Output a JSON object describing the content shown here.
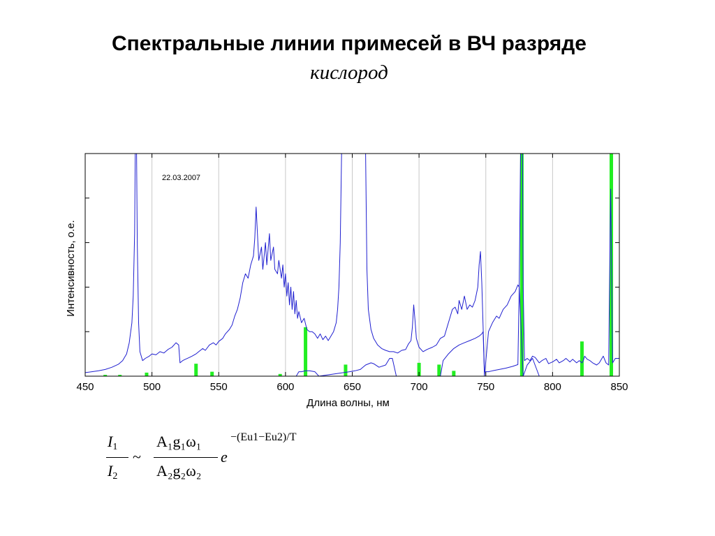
{
  "slide": {
    "title": "Спектральные линии примесей в ВЧ разряде",
    "subtitle": "кислород"
  },
  "chart_data": {
    "type": "line",
    "date_annotation": "22.03.2007",
    "xlabel": "Длина волны, нм",
    "ylabel": "Интенсивность, о.е.",
    "xlim": [
      450,
      850
    ],
    "x_ticks": [
      "450",
      "500",
      "550",
      "600",
      "650",
      "700",
      "750",
      "800",
      "850"
    ],
    "grid_x": [
      500,
      550,
      600,
      650,
      700,
      750,
      800
    ],
    "y_ticks_unlabeled": 5,
    "ylim": [
      0,
      5
    ],
    "colors": {
      "spectrum": "#1f1fd0",
      "lines": "#22ee22",
      "grid": "#c8c8c8",
      "axis": "#000000"
    },
    "series": [
      {
        "style": "line",
        "points": [
          [
            450,
            0.08
          ],
          [
            455,
            0.1
          ],
          [
            460,
            0.12
          ],
          [
            465,
            0.15
          ],
          [
            470,
            0.2
          ],
          [
            475,
            0.27
          ],
          [
            478,
            0.35
          ],
          [
            481,
            0.5
          ],
          [
            483,
            0.75
          ],
          [
            485,
            1.2
          ],
          [
            486,
            1.8
          ],
          [
            487,
            3.2
          ],
          [
            487.5,
            5.0
          ],
          [
            488.5,
            5.0
          ],
          [
            489,
            3.0
          ],
          [
            490,
            1.2
          ],
          [
            491,
            0.55
          ],
          [
            493,
            0.35
          ],
          [
            495,
            0.4
          ],
          [
            498,
            0.45
          ],
          [
            500,
            0.5
          ],
          [
            503,
            0.48
          ],
          [
            506,
            0.55
          ],
          [
            509,
            0.52
          ],
          [
            512,
            0.6
          ],
          [
            515,
            0.65
          ],
          [
            518,
            0.75
          ],
          [
            520,
            0.7
          ],
          [
            521,
            0.3
          ],
          [
            523,
            0.35
          ],
          [
            525,
            0.38
          ],
          [
            528,
            0.42
          ],
          [
            530,
            0.45
          ],
          [
            533,
            0.5
          ],
          [
            535,
            0.55
          ],
          [
            538,
            0.62
          ],
          [
            540,
            0.58
          ],
          [
            543,
            0.7
          ],
          [
            546,
            0.75
          ],
          [
            548,
            0.7
          ],
          [
            550,
            0.78
          ],
          [
            553,
            0.85
          ],
          [
            555,
            0.95
          ],
          [
            558,
            1.05
          ],
          [
            560,
            1.15
          ],
          [
            562,
            1.35
          ],
          [
            564,
            1.5
          ],
          [
            566,
            1.75
          ],
          [
            568,
            2.1
          ],
          [
            570,
            2.3
          ],
          [
            572,
            2.2
          ],
          [
            574,
            2.5
          ],
          [
            576,
            2.7
          ],
          [
            577,
            3.1
          ],
          [
            578,
            3.8
          ],
          [
            579,
            3.2
          ],
          [
            580,
            2.6
          ],
          [
            582,
            2.9
          ],
          [
            583,
            2.4
          ],
          [
            585,
            3.0
          ],
          [
            586,
            2.5
          ],
          [
            588,
            3.2
          ],
          [
            589,
            2.6
          ],
          [
            591,
            2.9
          ],
          [
            592,
            2.4
          ],
          [
            594,
            2.3
          ],
          [
            595,
            2.6
          ],
          [
            597,
            2.2
          ],
          [
            598,
            2.5
          ],
          [
            599,
            2.0
          ],
          [
            600,
            2.3
          ],
          [
            601,
            1.8
          ],
          [
            602,
            2.1
          ],
          [
            603,
            1.6
          ],
          [
            604,
            2.0
          ],
          [
            605,
            1.5
          ],
          [
            606,
            1.9
          ],
          [
            607,
            1.4
          ],
          [
            608,
            1.7
          ],
          [
            609,
            1.3
          ],
          [
            610,
            1.45
          ],
          [
            612,
            1.2
          ],
          [
            614,
            1.3
          ],
          [
            616,
            1.05
          ],
          [
            618,
            1.0
          ],
          [
            620,
            1.0
          ],
          [
            622,
            0.95
          ],
          [
            624,
            0.85
          ],
          [
            626,
            0.95
          ],
          [
            628,
            0.82
          ],
          [
            630,
            0.9
          ],
          [
            632,
            0.8
          ],
          [
            634,
            0.9
          ],
          [
            636,
            1.0
          ],
          [
            638,
            1.2
          ],
          [
            639,
            1.5
          ],
          [
            640,
            2.0
          ],
          [
            641,
            3.0
          ],
          [
            642,
            5.0
          ],
          [
            660,
            5.0
          ],
          [
            661,
            2.4
          ],
          [
            662,
            1.5
          ],
          [
            664,
            1.05
          ],
          [
            666,
            0.85
          ],
          [
            669,
            0.7
          ],
          [
            672,
            0.62
          ],
          [
            675,
            0.58
          ],
          [
            678,
            0.55
          ],
          [
            681,
            0.55
          ],
          [
            684,
            0.52
          ],
          [
            687,
            0.58
          ],
          [
            690,
            0.6
          ],
          [
            692,
            0.72
          ],
          [
            694,
            0.8
          ],
          [
            695,
            1.1
          ],
          [
            696,
            1.6
          ],
          [
            697,
            1.25
          ],
          [
            698,
            0.85
          ],
          [
            700,
            0.65
          ],
          [
            703,
            0.55
          ],
          [
            706,
            0.6
          ],
          [
            710,
            0.65
          ],
          [
            713,
            0.7
          ],
          [
            716,
            0.85
          ],
          [
            719,
            0.9
          ],
          [
            721,
            1.1
          ],
          [
            723,
            1.3
          ],
          [
            725,
            1.5
          ],
          [
            727,
            1.55
          ],
          [
            729,
            1.4
          ],
          [
            730,
            1.7
          ],
          [
            732,
            1.5
          ],
          [
            734,
            1.8
          ],
          [
            736,
            1.5
          ],
          [
            738,
            1.6
          ],
          [
            740,
            1.55
          ],
          [
            742,
            1.7
          ],
          [
            744,
            2.0
          ],
          [
            745,
            2.5
          ],
          [
            746,
            2.8
          ],
          [
            747,
            2.1
          ],
          [
            748,
            1.1
          ],
          [
            749,
            0.1
          ],
          [
            752,
            0.1
          ],
          [
            755,
            0.12
          ],
          [
            760,
            0.15
          ],
          [
            765,
            0.18
          ],
          [
            770,
            0.22
          ],
          [
            774,
            0.26
          ],
          [
            775,
            2.0
          ],
          [
            776,
            5.0
          ],
          [
            777.5,
            5.0
          ],
          [
            778,
            2.0
          ],
          [
            779,
            0.35
          ],
          [
            781,
            0.4
          ],
          [
            783,
            0.35
          ],
          [
            785,
            0.45
          ],
          [
            787,
            0.42
          ],
          [
            790,
            0.3
          ],
          [
            792,
            0.35
          ],
          [
            795,
            0.4
          ],
          [
            797,
            0.28
          ],
          [
            800,
            0.32
          ],
          [
            803,
            0.38
          ],
          [
            805,
            0.3
          ],
          [
            808,
            0.35
          ],
          [
            810,
            0.4
          ],
          [
            813,
            0.32
          ],
          [
            815,
            0.38
          ],
          [
            818,
            0.3
          ],
          [
            820,
            0.35
          ],
          [
            822,
            0.3
          ],
          [
            823,
            0.35
          ],
          [
            824,
            0.45
          ],
          [
            826,
            0.38
          ],
          [
            828,
            0.35
          ],
          [
            830,
            0.3
          ],
          [
            833,
            0.25
          ],
          [
            835,
            0.3
          ],
          [
            838,
            0.45
          ],
          [
            840,
            0.3
          ],
          [
            842,
            0.25
          ],
          [
            843,
            3.0
          ],
          [
            843.5,
            4.2
          ],
          [
            844,
            3.0
          ],
          [
            845,
            0.3
          ],
          [
            847,
            0.4
          ],
          [
            850,
            0.4
          ]
        ]
      },
      {
        "style": "line",
        "points": [
          [
            608,
            0.0
          ],
          [
            610,
            0.1
          ],
          [
            612,
            0.1
          ],
          [
            615,
            0.12
          ],
          [
            618,
            0.12
          ],
          [
            622,
            0.1
          ],
          [
            625,
            0.0
          ],
          [
            648,
            0.1
          ],
          [
            652,
            0.12
          ],
          [
            656,
            0.15
          ],
          [
            660,
            0.25
          ],
          [
            664,
            0.3
          ],
          [
            666,
            0.28
          ],
          [
            670,
            0.2
          ],
          [
            675,
            0.25
          ],
          [
            678,
            0.4
          ],
          [
            680,
            0.4
          ],
          [
            683,
            0.0
          ],
          [
            716,
            0.0
          ],
          [
            718,
            0.35
          ],
          [
            722,
            0.5
          ],
          [
            726,
            0.62
          ],
          [
            730,
            0.7
          ],
          [
            734,
            0.75
          ],
          [
            738,
            0.8
          ],
          [
            742,
            0.85
          ],
          [
            745,
            0.9
          ],
          [
            747,
            0.95
          ],
          [
            748,
            1.0
          ],
          [
            749,
            0.0
          ],
          [
            752,
            1.0
          ],
          [
            755,
            1.2
          ],
          [
            758,
            1.35
          ],
          [
            760,
            1.3
          ],
          [
            763,
            1.5
          ],
          [
            766,
            1.6
          ],
          [
            769,
            1.8
          ],
          [
            772,
            1.9
          ],
          [
            774,
            2.05
          ],
          [
            775,
            2.0
          ],
          [
            778,
            0.0
          ],
          [
            781,
            0.25
          ],
          [
            785,
            0.4
          ],
          [
            790,
            0.0
          ]
        ]
      },
      {
        "style": "sticks",
        "points": [
          [
            465,
            0.03
          ],
          [
            476,
            0.03
          ],
          [
            496,
            0.08
          ],
          [
            533,
            0.28
          ],
          [
            545,
            0.1
          ],
          [
            596,
            0.05
          ],
          [
            615,
            1.1
          ],
          [
            645,
            0.26
          ],
          [
            700,
            0.3
          ],
          [
            715,
            0.26
          ],
          [
            726,
            0.12
          ],
          [
            777,
            5.0
          ],
          [
            822,
            0.78
          ],
          [
            844,
            5.0
          ]
        ]
      }
    ]
  },
  "formula": {
    "numerator_left": "I",
    "numerator_left_sub": "1",
    "denominator_left": "I",
    "denominator_left_sub": "2",
    "relation": "~",
    "numerator_right": "A₁g₁ω₁",
    "denominator_right": "A₂g₂ω₂",
    "base": "e",
    "exponent": "−(Eu1−Eu2)/T"
  }
}
